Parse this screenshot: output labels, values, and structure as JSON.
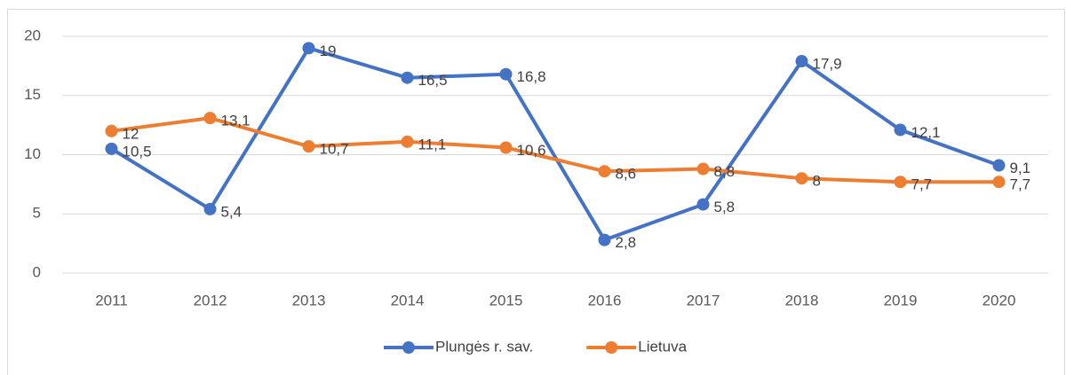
{
  "chart_data": {
    "type": "line",
    "categories": [
      "2011",
      "2012",
      "2013",
      "2014",
      "2015",
      "2016",
      "2017",
      "2018",
      "2019",
      "2020"
    ],
    "series": [
      {
        "name": "Plungės r. sav.",
        "color": "#4472c4",
        "values": [
          10.5,
          5.4,
          19,
          16.5,
          16.8,
          2.8,
          5.8,
          17.9,
          12.1,
          9.1
        ],
        "value_labels": [
          "10,5",
          "5,4",
          "19",
          "16,5",
          "16,8",
          "2,8",
          "5,8",
          "17,9",
          "12,1",
          "9,1"
        ]
      },
      {
        "name": "Lietuva",
        "color": "#ed7d31",
        "values": [
          12,
          13.1,
          10.7,
          11.1,
          10.6,
          8.6,
          8.8,
          8,
          7.7,
          7.7
        ],
        "value_labels": [
          "12",
          "13,1",
          "10,7",
          "11,1",
          "10,6",
          "8,6",
          "8,8",
          "8",
          "7,7",
          "7,7"
        ]
      }
    ],
    "ylim": [
      0,
      20
    ],
    "yticks": [
      0,
      5,
      10,
      15,
      20
    ],
    "grid": true,
    "legend": "bottom"
  }
}
